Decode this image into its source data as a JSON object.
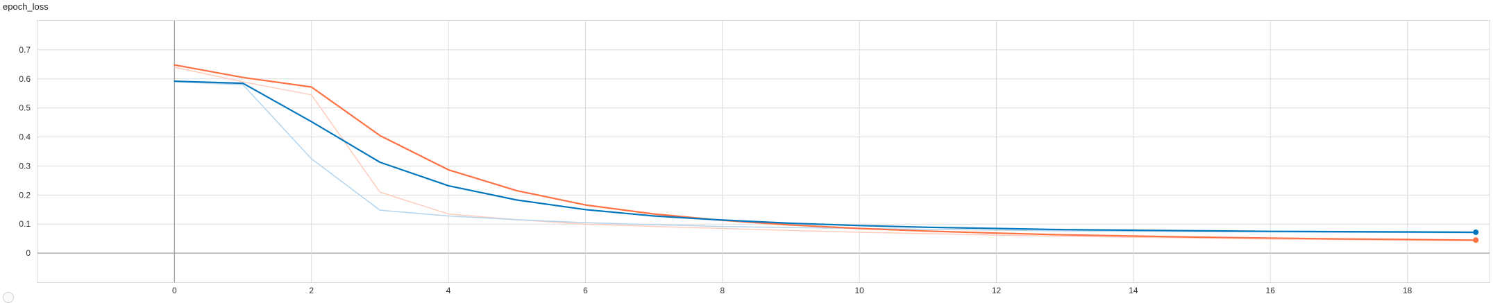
{
  "title": "epoch_loss",
  "chart_data": {
    "type": "line",
    "title": "epoch_loss",
    "xlabel": "",
    "ylabel": "",
    "xlim": [
      -2,
      19.2
    ],
    "ylim": [
      -0.1,
      0.8
    ],
    "xticks": [
      0,
      2,
      4,
      6,
      8,
      10,
      12,
      14,
      16,
      18
    ],
    "yticks": [
      0,
      0.1,
      0.2,
      0.3,
      0.4,
      0.5,
      0.6,
      0.7
    ],
    "grid": true,
    "smoothed_series": [
      {
        "color": "#ff7043",
        "x": [
          0,
          1,
          2,
          3,
          4,
          5,
          6,
          7,
          8,
          9,
          10,
          11,
          12,
          13,
          14,
          15,
          16,
          17,
          18,
          19
        ],
        "values": [
          0.648,
          0.605,
          0.572,
          0.405,
          0.287,
          0.215,
          0.166,
          0.135,
          0.113,
          0.097,
          0.085,
          0.076,
          0.069,
          0.063,
          0.059,
          0.055,
          0.052,
          0.049,
          0.047,
          0.045
        ]
      },
      {
        "color": "#0277bd",
        "x": [
          0,
          1,
          2,
          3,
          4,
          5,
          6,
          7,
          8,
          9,
          10,
          11,
          12,
          13,
          14,
          15,
          16,
          17,
          18,
          19
        ],
        "values": [
          0.592,
          0.585,
          0.453,
          0.313,
          0.232,
          0.183,
          0.15,
          0.128,
          0.114,
          0.103,
          0.095,
          0.089,
          0.085,
          0.081,
          0.079,
          0.077,
          0.075,
          0.074,
          0.073,
          0.072
        ]
      }
    ],
    "raw_series": [
      {
        "color": "#ffccbc",
        "x": [
          0,
          1,
          2,
          3,
          4,
          5,
          6,
          7,
          8,
          9,
          10,
          11,
          12,
          13,
          14,
          15,
          16,
          17,
          18,
          19
        ],
        "values": [
          0.64,
          0.59,
          0.545,
          0.21,
          0.135,
          0.115,
          0.1,
          0.092,
          0.085,
          0.078,
          0.072,
          0.067,
          0.062,
          0.058,
          0.055,
          0.052,
          0.049,
          0.047,
          0.045,
          0.043
        ]
      },
      {
        "color": "#b3d4ec",
        "x": [
          0,
          1,
          2,
          3,
          4,
          5,
          6,
          7,
          8,
          9,
          10,
          11,
          12,
          13,
          14,
          15,
          16,
          17,
          18,
          19
        ],
        "values": [
          0.59,
          0.58,
          0.325,
          0.148,
          0.128,
          0.115,
          0.105,
          0.098,
          0.092,
          0.088,
          0.085,
          0.082,
          0.079,
          0.077,
          0.075,
          0.074,
          0.073,
          0.072,
          0.071,
          0.07
        ]
      }
    ]
  }
}
